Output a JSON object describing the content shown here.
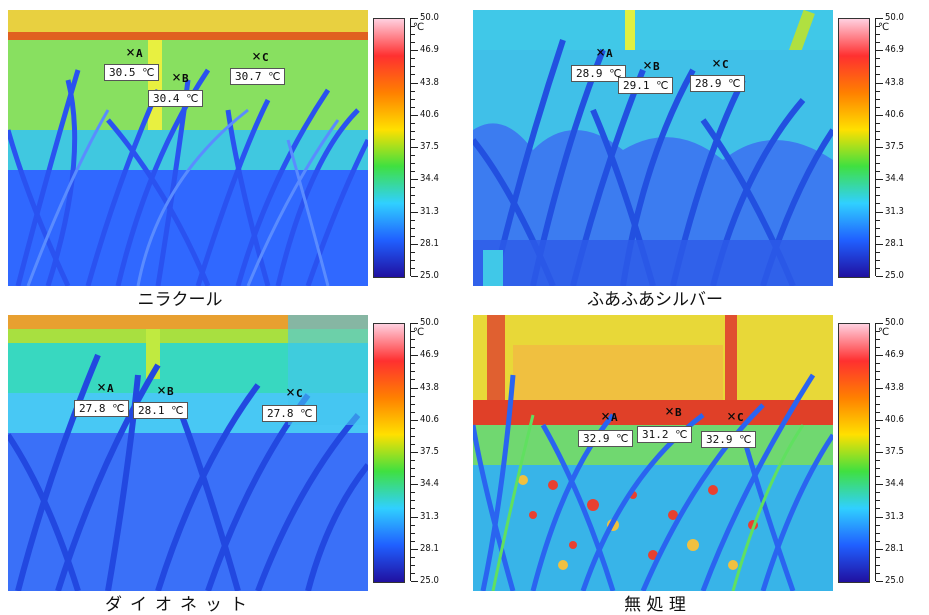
{
  "panels": [
    {
      "caption": "ニラクール",
      "markers": [
        {
          "point": "A",
          "value": "30.5 ℃"
        },
        {
          "point": "B",
          "value": "30.4 ℃"
        },
        {
          "point": "C",
          "value": "30.7 ℃"
        }
      ]
    },
    {
      "caption": "ふあふあシルバー",
      "markers": [
        {
          "point": "A",
          "value": "28.9 ℃"
        },
        {
          "point": "B",
          "value": "29.1 ℃"
        },
        {
          "point": "C",
          "value": "28.9 ℃"
        }
      ]
    },
    {
      "caption": "ダイオネット",
      "markers": [
        {
          "point": "A",
          "value": "27.8 ℃"
        },
        {
          "point": "B",
          "value": "28.1 ℃"
        },
        {
          "point": "C",
          "value": "27.8 ℃"
        }
      ]
    },
    {
      "caption": "無 処 理",
      "markers": [
        {
          "point": "A",
          "value": "32.9 ℃"
        },
        {
          "point": "B",
          "value": "31.2 ℃"
        },
        {
          "point": "C",
          "value": "32.9 ℃"
        }
      ]
    }
  ],
  "scale": {
    "unit": "℃",
    "ticks": [
      "50.0",
      "46.9",
      "43.8",
      "40.6",
      "37.5",
      "34.4",
      "31.3",
      "28.1",
      "25.0"
    ]
  },
  "colors": {
    "palette": [
      "#ffd0e0",
      "#ff3030",
      "#ff8000",
      "#ffe000",
      "#40e040",
      "#30d0ff",
      "#2060ff",
      "#2010a0"
    ]
  }
}
